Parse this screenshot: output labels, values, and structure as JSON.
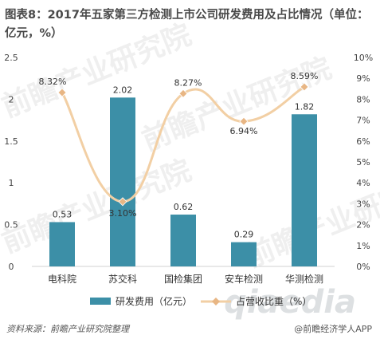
{
  "header": {
    "title": "图表8：2017年五家第三方检测上市公司研发费用及占比情况（单位：亿元，%）"
  },
  "chart_data": {
    "type": "bar+line",
    "categories": [
      "电科院",
      "苏交科",
      "国检集团",
      "安车检测",
      "华测检测"
    ],
    "series": [
      {
        "name": "研发费用（亿元）",
        "type": "bar",
        "axis": "left",
        "values": [
          0.53,
          2.02,
          0.62,
          0.29,
          1.82
        ],
        "labels": [
          "0.53",
          "2.02",
          "0.62",
          "0.29",
          "1.82"
        ]
      },
      {
        "name": "占营收比重（%）",
        "type": "line",
        "axis": "right",
        "values": [
          8.32,
          3.1,
          8.27,
          6.94,
          8.59
        ],
        "labels": [
          "8.32%",
          "3.10%",
          "8.27%",
          "6.94%",
          "8.59%"
        ]
      }
    ],
    "ylim_left": [
      0,
      2.5
    ],
    "yticks_left": [
      "0",
      "0.5",
      "1",
      "1.5",
      "2",
      "2.5"
    ],
    "ylim_right": [
      0,
      10
    ],
    "yticks_right": [
      "0%",
      "1%",
      "2%",
      "3%",
      "4%",
      "5%",
      "6%",
      "7%",
      "8%",
      "9%",
      "10%"
    ],
    "colors": {
      "bar": "#3c8fa7",
      "line": "#f2cfa4",
      "marker": "#e8b684"
    },
    "legend_position": "bottom"
  },
  "footer": {
    "source": "资料来源：前瞻产业研究院整理",
    "brand": "@前瞻经济学人APP"
  },
  "watermark": {
    "text": "前瞻产业研究院",
    "logo": "qianzhan"
  }
}
